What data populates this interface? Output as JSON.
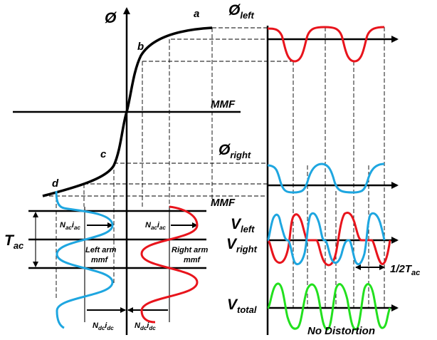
{
  "labels": {
    "phi": "Ø",
    "a": "a",
    "b": "b",
    "c": "c",
    "d": "d",
    "mmf_top": "MMF",
    "mmf_bottom": "MMF",
    "phi_left": "Ø",
    "phi_left_sub": "left",
    "phi_right": "Ø",
    "phi_right_sub": "right",
    "t_ac": "T",
    "t_ac_sub": "ac",
    "n_ac_left_main": "N",
    "n_ac_left_sub1": "ac",
    "n_ac_left_i": "i",
    "n_ac_left_sub2": "ac",
    "n_ac_right_main": "N",
    "n_ac_right_sub1": "ac",
    "n_ac_right_i": "i",
    "n_ac_right_sub2": "ac",
    "left_arm_line1": "Left arm",
    "left_arm_line2": "mmf",
    "right_arm_line1": "Right arm",
    "right_arm_line2": "mmf",
    "n_dc_left_main": "N",
    "n_dc_left_sub1": "dc",
    "n_dc_left_i": "i",
    "n_dc_left_sub2": "dc",
    "n_dc_right_main": "N",
    "n_dc_right_sub1": "dc",
    "n_dc_right_i": "i",
    "n_dc_right_sub2": "dc",
    "v_left": "V",
    "v_left_sub": "left",
    "v_right": "V",
    "v_right_sub": "right",
    "half_t_ac": "1/2T",
    "half_t_ac_sub": "ac",
    "v_total": "V",
    "v_total_sub": "total",
    "no_distortion": "No Distortion"
  },
  "colors": {
    "left": "#e8141c",
    "right": "#1ea6e0",
    "total": "#22e01e",
    "line": "#000000"
  }
}
